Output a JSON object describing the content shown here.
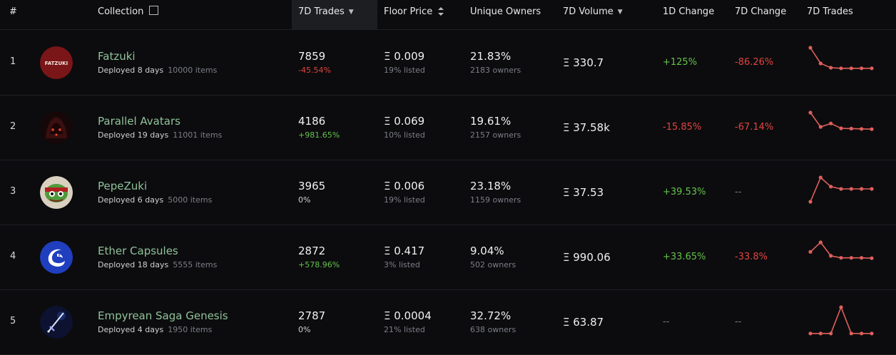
{
  "header": {
    "rank": "#",
    "collection": "Collection",
    "trades7d": "7D Trades",
    "floor": "Floor Price",
    "owners": "Unique Owners",
    "volume7d": "7D Volume",
    "change1d": "1D Change",
    "change7d": "7D Change",
    "tradesChart": "7D Trades"
  },
  "colors": {
    "positive": "#63c24a",
    "negative": "#e0443f",
    "name": "#8fc29a",
    "spark": "#e0605c"
  },
  "rows": [
    {
      "rank": "1",
      "name": "Fatzuki",
      "deployed": "Deployed 8 days",
      "items": "10000 items",
      "trades": "7859",
      "tradesChange": "-45.54%",
      "floor": "Ξ 0.009",
      "listed": "19% listed",
      "ownersPct": "21.83%",
      "owners": "2183 owners",
      "volume": "Ξ 330.7",
      "change1d": "+125%",
      "change7d": "-86.26%",
      "avatarIcon": "fatzuki-logo",
      "avatarText": "FATZUKI",
      "spark": [
        100,
        45,
        30,
        28,
        28,
        28,
        28
      ]
    },
    {
      "rank": "2",
      "name": "Parallel Avatars",
      "deployed": "Deployed 19 days",
      "items": "11001 items",
      "trades": "4186",
      "tradesChange": "+981.65%",
      "floor": "Ξ 0.069",
      "listed": "10% listed",
      "ownersPct": "19.61%",
      "owners": "2157 owners",
      "volume": "Ξ 37.58k",
      "change1d": "-15.85%",
      "change7d": "-67.14%",
      "avatarIcon": "parallel-avatar-image",
      "avatarText": "",
      "spark": [
        100,
        50,
        62,
        45,
        44,
        43,
        42
      ]
    },
    {
      "rank": "3",
      "name": "PepeZuki",
      "deployed": "Deployed 6 days",
      "items": "5000 items",
      "trades": "3965",
      "tradesChange": "0%",
      "floor": "Ξ 0.006",
      "listed": "19% listed",
      "ownersPct": "23.18%",
      "owners": "1159 owners",
      "volume": "Ξ 37.53",
      "change1d": "+39.53%",
      "change7d": "--",
      "avatarIcon": "pepe-avatar-image",
      "avatarText": "",
      "spark": [
        15,
        100,
        68,
        60,
        60,
        60,
        60
      ]
    },
    {
      "rank": "4",
      "name": "Ether Capsules",
      "deployed": "Deployed 18 days",
      "items": "5555 items",
      "trades": "2872",
      "tradesChange": "+578.96%",
      "floor": "Ξ 0.417",
      "listed": "3% listed",
      "ownersPct": "9.04%",
      "owners": "502 owners",
      "volume": "Ξ 990.06",
      "change1d": "+33.65%",
      "change7d": "-33.8%",
      "avatarIcon": "dragon-logo",
      "avatarText": "",
      "spark": [
        48,
        72,
        38,
        33,
        33,
        33,
        32
      ]
    },
    {
      "rank": "5",
      "name": "Empyrean Saga Genesis",
      "deployed": "Deployed 4 days",
      "items": "1950 items",
      "trades": "2787",
      "tradesChange": "0%",
      "floor": "Ξ 0.0004",
      "listed": "21% listed",
      "ownersPct": "32.72%",
      "owners": "638 owners",
      "volume": "Ξ 63.87",
      "change1d": "--",
      "change7d": "--",
      "avatarIcon": "sword-avatar-image",
      "avatarText": "",
      "spark": [
        8,
        8,
        8,
        100,
        8,
        8,
        8
      ]
    }
  ]
}
